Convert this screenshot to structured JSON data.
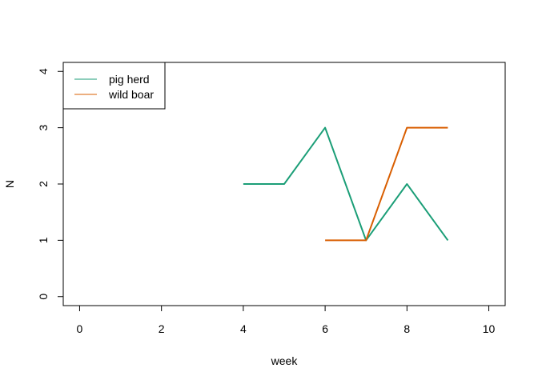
{
  "chart_data": {
    "type": "line",
    "title": "",
    "xlabel": "week",
    "ylabel": "N",
    "xlim": [
      -0.4,
      10.4
    ],
    "ylim": [
      -0.16,
      4.16
    ],
    "xticks": [
      0,
      2,
      4,
      6,
      8,
      10
    ],
    "yticks": [
      0,
      1,
      2,
      3,
      4
    ],
    "x_tick_labels": [
      "0",
      "2",
      "4",
      "6",
      "8",
      "10"
    ],
    "y_tick_labels": [
      "0",
      "1",
      "2",
      "3",
      "4"
    ],
    "grid": false,
    "legend_placement": "top-left",
    "series": [
      {
        "name": "pig herd",
        "color": "#1b9e77",
        "x": [
          4,
          5,
          6,
          7,
          8,
          9
        ],
        "y": [
          2,
          2,
          3,
          1,
          2,
          1
        ]
      },
      {
        "name": "wild boar",
        "color": "#d95f02",
        "x": [
          6,
          7,
          8,
          9
        ],
        "y": [
          1,
          1,
          3,
          3
        ]
      }
    ]
  }
}
